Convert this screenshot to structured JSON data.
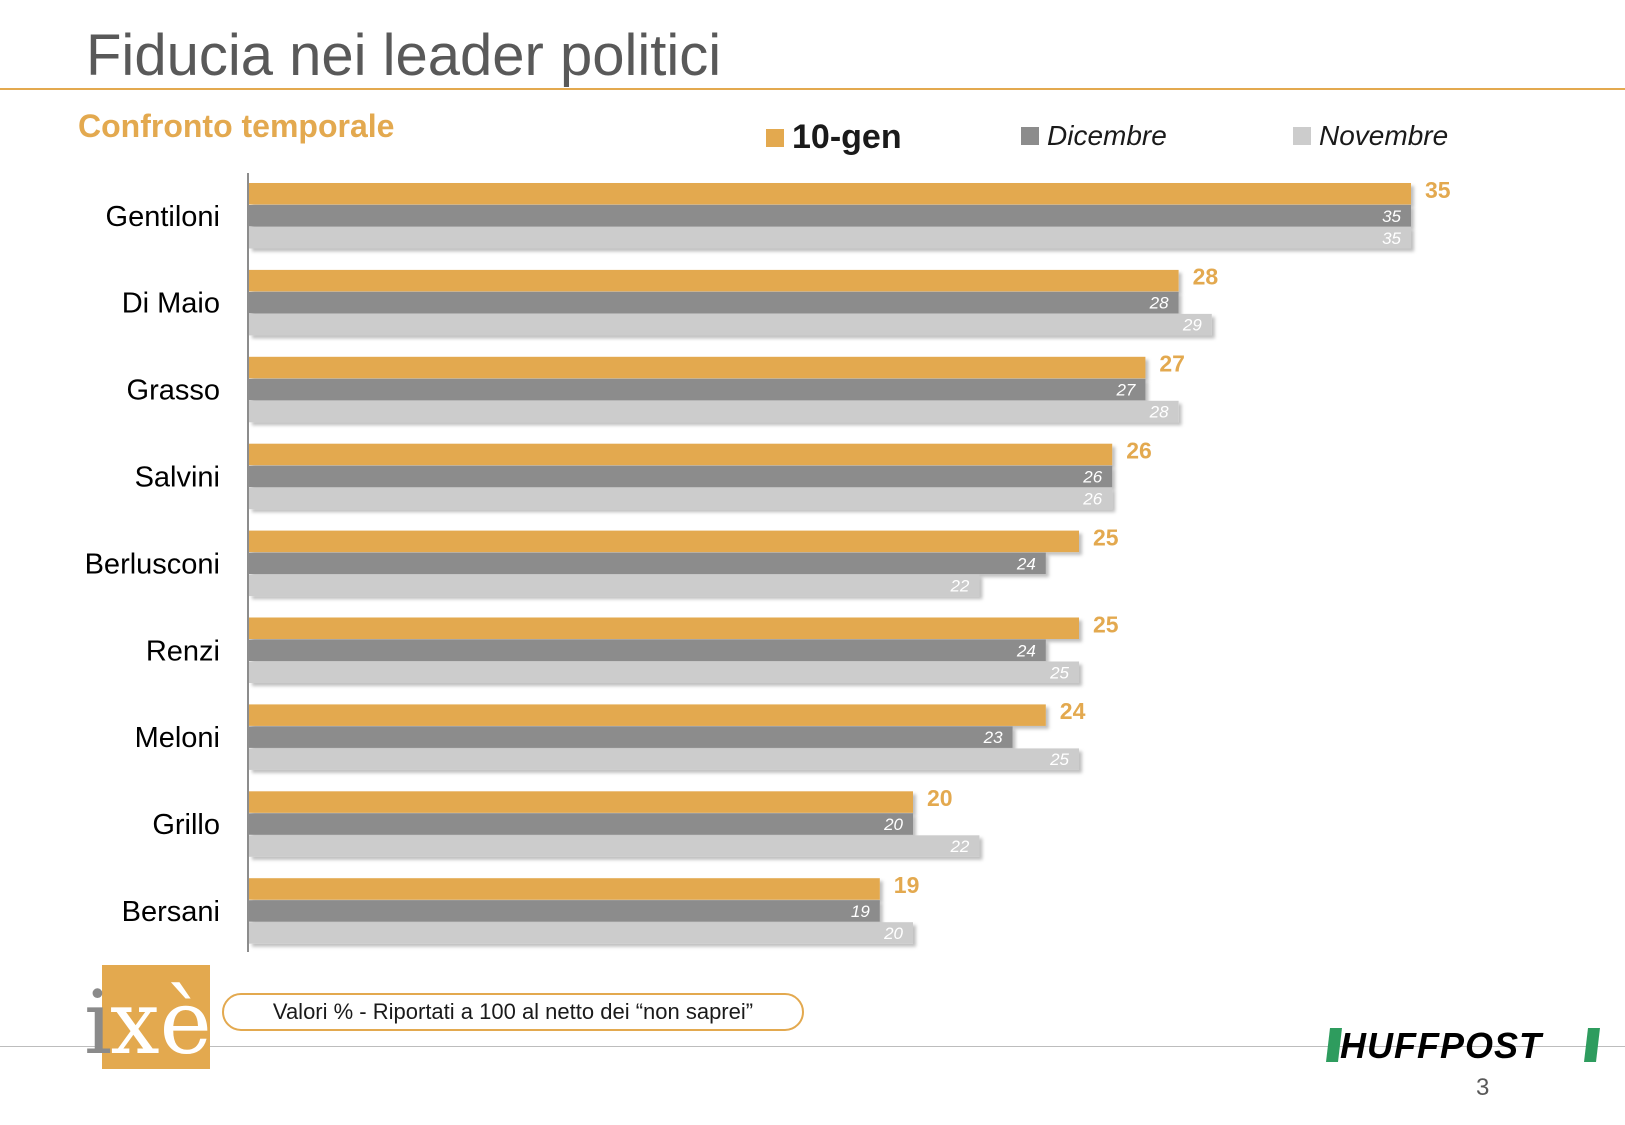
{
  "title": "Fiducia nei leader politici",
  "subtitle": "Confronto temporale",
  "legend": [
    {
      "label": "10-gen",
      "color": "#e3a94f"
    },
    {
      "label": "Dicembre",
      "color": "#8c8c8c"
    },
    {
      "label": "Novembre",
      "color": "#cccccc"
    }
  ],
  "chart_data": {
    "type": "bar",
    "orientation": "horizontal",
    "categories": [
      "Gentiloni",
      "Di Maio",
      "Grasso",
      "Salvini",
      "Berlusconi",
      "Renzi",
      "Meloni",
      "Grillo",
      "Bersani"
    ],
    "series": [
      {
        "name": "10-gen",
        "color": "#e3a94f",
        "values": [
          35,
          28,
          27,
          26,
          25,
          25,
          24,
          20,
          19
        ]
      },
      {
        "name": "Dicembre",
        "color": "#8c8c8c",
        "values": [
          35,
          28,
          27,
          26,
          24,
          24,
          23,
          20,
          19
        ]
      },
      {
        "name": "Novembre",
        "color": "#cccccc",
        "values": [
          35,
          29,
          28,
          26,
          22,
          25,
          25,
          22,
          20
        ]
      }
    ],
    "xlim": [
      0,
      36
    ],
    "grid": false,
    "legend_position": "top"
  },
  "note": "Valori % - Riportati a 100 al netto dei “non saprei”",
  "logos": {
    "left": "ixè",
    "right": "HUFFPOST"
  },
  "page_number": "3"
}
